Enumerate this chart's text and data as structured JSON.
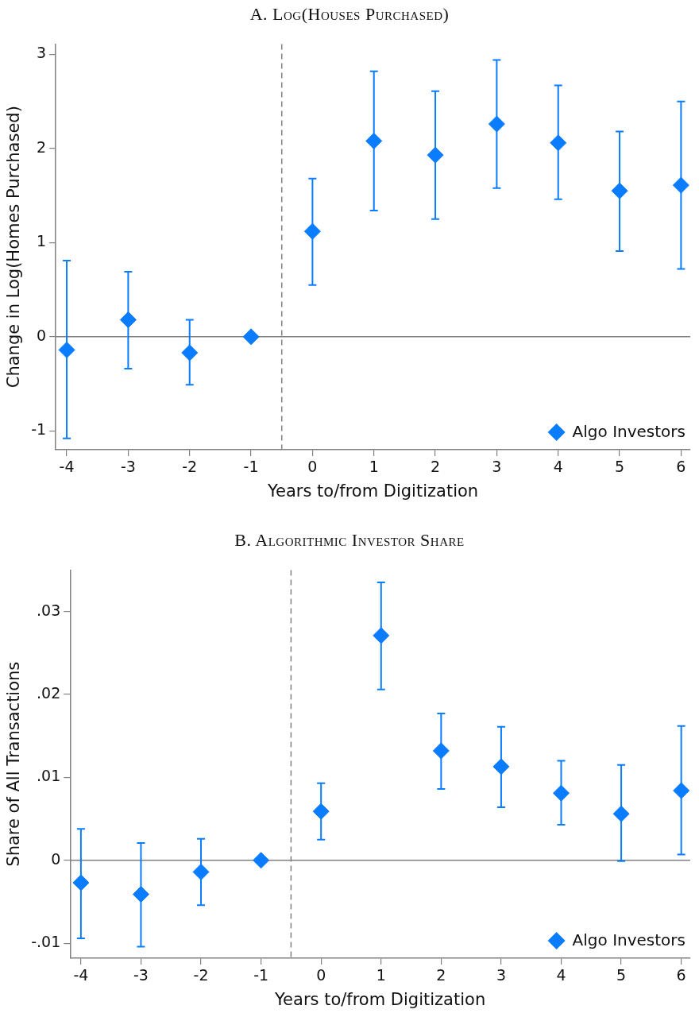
{
  "chart_data": [
    {
      "type": "scatter",
      "title": "A. Log(Houses Purchased)",
      "xlabel": "Years to/from Digitization",
      "ylabel": "Change in Log(Homes Purchased)",
      "x": [
        -4,
        -3,
        -2,
        -1,
        0,
        1,
        2,
        3,
        4,
        5,
        6
      ],
      "series": [
        {
          "name": "Algo Investors",
          "color": "#0a7cff",
          "values": [
            -0.14,
            0.18,
            -0.17,
            0,
            1.12,
            2.08,
            1.93,
            2.26,
            2.06,
            1.55,
            1.61
          ],
          "errors": [
            [
              -1.08,
              0.81
            ],
            [
              -0.34,
              0.69
            ],
            [
              -0.51,
              0.18
            ],
            null,
            [
              0.55,
              1.68
            ],
            [
              1.34,
              2.82
            ],
            [
              1.25,
              2.61
            ],
            [
              1.58,
              2.94
            ],
            [
              1.46,
              2.67
            ],
            [
              0.91,
              2.18
            ],
            [
              0.72,
              2.5
            ]
          ]
        }
      ],
      "xlim": [
        -4.18,
        6.15
      ],
      "xticks": [
        -4,
        -3,
        -2,
        -1,
        0,
        1,
        2,
        3,
        4,
        5,
        6
      ],
      "ylim": [
        -1.2,
        3.11
      ],
      "yticks": [
        -1,
        0,
        1,
        2,
        3
      ],
      "ref_lines": [
        {
          "axis": "y",
          "value": 0,
          "color": "#808080",
          "line_style": "solid"
        },
        {
          "axis": "x",
          "value": -0.5,
          "color": "#808080",
          "line_style": "dashed"
        }
      ],
      "marker": "diamond",
      "legend": "bottom right",
      "grid": false
    },
    {
      "type": "scatter",
      "title": "B. Algorithmic Investor Share",
      "xlabel": "Years to/from Digitization",
      "ylabel": "Share of All Transactions",
      "x": [
        -4,
        -3,
        -2,
        -1,
        0,
        1,
        2,
        3,
        4,
        5,
        6
      ],
      "series": [
        {
          "name": "Algo Investors",
          "color": "#0a7cff",
          "values": [
            -0.0027,
            -0.0041,
            -0.0014,
            0,
            0.0059,
            0.0271,
            0.0132,
            0.0113,
            0.0081,
            0.0056,
            0.0084
          ],
          "errors": [
            [
              -0.0094,
              0.0038
            ],
            [
              -0.0104,
              0.0021
            ],
            [
              -0.0054,
              0.0026
            ],
            null,
            [
              0.0025,
              0.0093
            ],
            [
              0.0206,
              0.0335
            ],
            [
              0.0086,
              0.0177
            ],
            [
              0.0064,
              0.0161
            ],
            [
              0.0043,
              0.012
            ],
            [
              -0.0001,
              0.0115
            ],
            [
              0.0007,
              0.0162
            ]
          ]
        }
      ],
      "xlim": [
        -4.18,
        6.15
      ],
      "xticks": [
        -4,
        -3,
        -2,
        -1,
        0,
        1,
        2,
        3,
        4,
        5,
        6
      ],
      "ylim": [
        -0.0118,
        0.035
      ],
      "yticks": [
        {
          "value": -0.01,
          "label": "-.01"
        },
        0,
        {
          "value": 0.01,
          "label": ".01"
        },
        {
          "value": 0.02,
          "label": ".02"
        },
        {
          "value": 0.03,
          "label": ".03"
        }
      ],
      "ref_lines": [
        {
          "axis": "y",
          "value": 0,
          "color": "#808080",
          "line_style": "solid"
        },
        {
          "axis": "x",
          "value": -0.5,
          "color": "#808080",
          "line_style": "dashed"
        }
      ],
      "marker": "diamond",
      "legend": "bottom right",
      "grid": false
    }
  ]
}
